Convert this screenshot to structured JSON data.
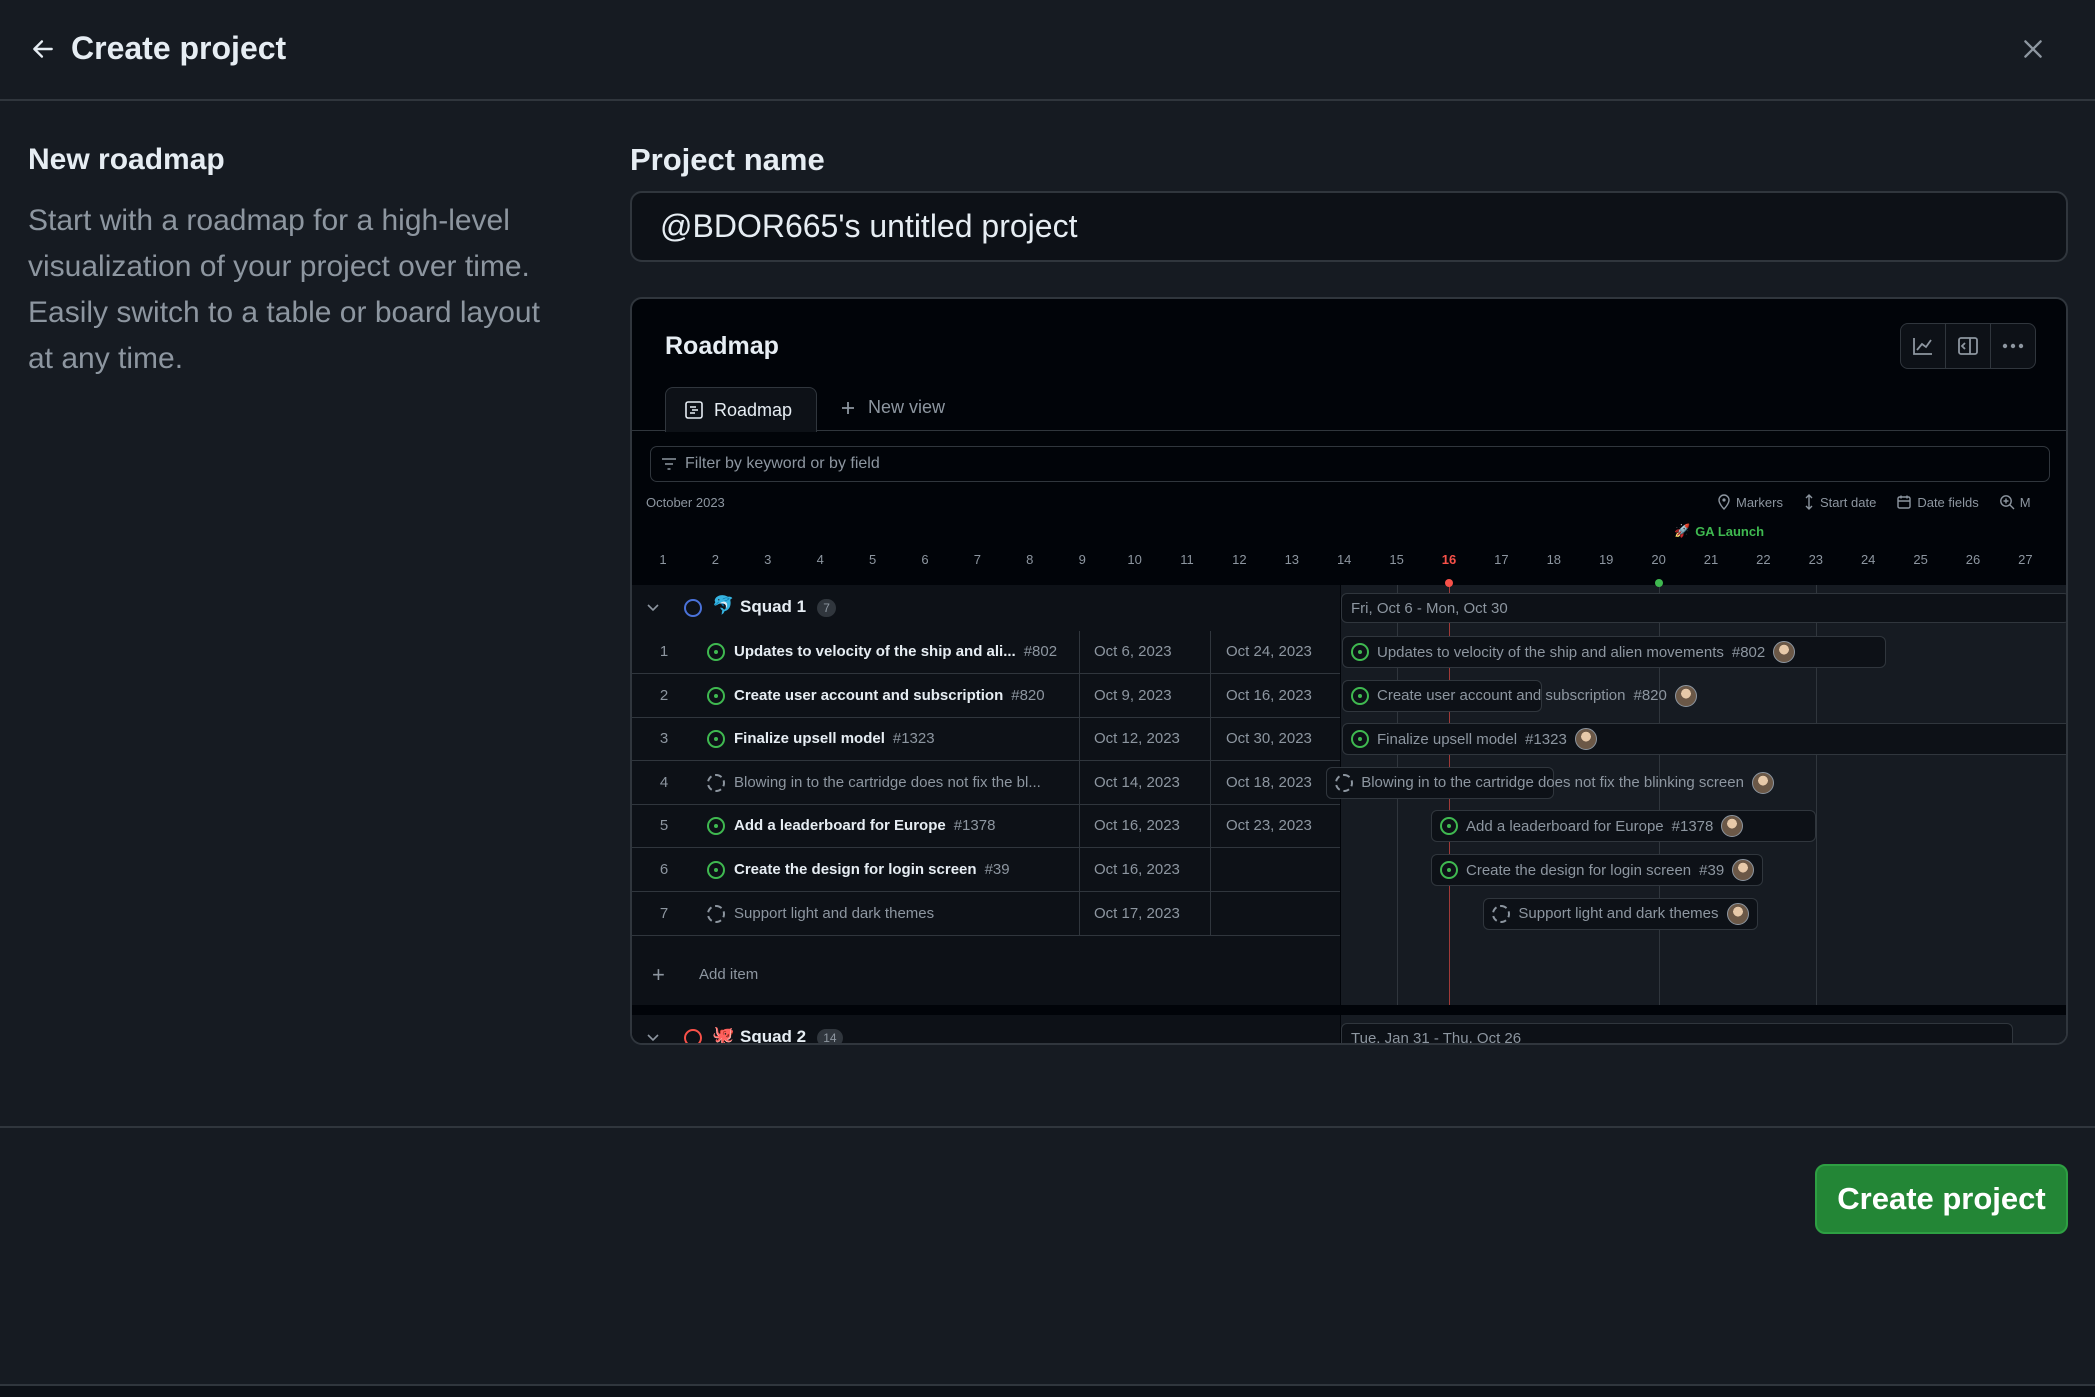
{
  "header": {
    "title": "Create project"
  },
  "template": {
    "heading": "New roadmap",
    "description": "Start with a roadmap for a high-level visualization of your project over time. Easily switch to a table or board layout at any time."
  },
  "project_name": {
    "label": "Project name",
    "value": "@BDOR665's untitled project"
  },
  "preview": {
    "title": "Roadmap",
    "tabs": {
      "active": "Roadmap",
      "new": "New view"
    },
    "filter_placeholder": "Filter by keyword or by field",
    "month": "October 2023",
    "controls": {
      "markers": "Markers",
      "start_date": "Start date",
      "date_fields": "Date fields",
      "zoom": "M"
    },
    "marker": "GA Launch",
    "days": [
      "1",
      "2",
      "3",
      "4",
      "5",
      "6",
      "7",
      "8",
      "9",
      "10",
      "11",
      "12",
      "13",
      "14",
      "15",
      "16",
      "17",
      "18",
      "19",
      "20",
      "21",
      "22",
      "23",
      "24",
      "25",
      "26",
      "27"
    ],
    "today": "16",
    "groups": [
      {
        "name": "Squad 1",
        "emoji": "🐬",
        "count": "7",
        "color": "#4a72d9",
        "range": "Fri, Oct 6 - Mon, Oct 30",
        "items": [
          {
            "num": "1",
            "title": "Updates to velocity of the ship and ali...",
            "full": "Updates to velocity of the ship and alien movements",
            "issue": "#802",
            "start": "Oct 6, 2023",
            "end": "Oct 24, 2023",
            "status": "open"
          },
          {
            "num": "2",
            "title": "Create user account and subscription",
            "full": "Create user account and subscription",
            "issue": "#820",
            "start": "Oct 9, 2023",
            "end": "Oct 16, 2023",
            "status": "open"
          },
          {
            "num": "3",
            "title": "Finalize upsell model",
            "full": "Finalize upsell model",
            "issue": "#1323",
            "start": "Oct 12, 2023",
            "end": "Oct 30, 2023",
            "status": "open"
          },
          {
            "num": "4",
            "title": "Blowing in to the cartridge does not fix the bl...",
            "full": "Blowing in to the cartridge does not fix the blinking screen",
            "issue": "",
            "start": "Oct 14, 2023",
            "end": "Oct 18, 2023",
            "status": "draft"
          },
          {
            "num": "5",
            "title": "Add a leaderboard for Europe",
            "full": "Add a leaderboard for Europe",
            "issue": "#1378",
            "start": "Oct 16, 2023",
            "end": "Oct 23, 2023",
            "status": "open"
          },
          {
            "num": "6",
            "title": "Create the design for login screen",
            "full": "Create the design for login screen",
            "issue": "#39",
            "start": "Oct 16, 2023",
            "end": "",
            "status": "open"
          },
          {
            "num": "7",
            "title": "Support light and dark themes",
            "full": "Support light and dark themes",
            "issue": "",
            "start": "Oct 17, 2023",
            "end": "",
            "status": "draft"
          }
        ],
        "add_item": "Add item"
      },
      {
        "name": "Squad 2",
        "emoji": "🐙",
        "count": "14",
        "color": "#f85149",
        "range": "Tue, Jan 31 - Thu, Oct 26"
      }
    ]
  },
  "footer": {
    "create_label": "Create project"
  },
  "colors": {
    "accent": "#238636",
    "open": "#3fb950",
    "today": "#f85149"
  }
}
